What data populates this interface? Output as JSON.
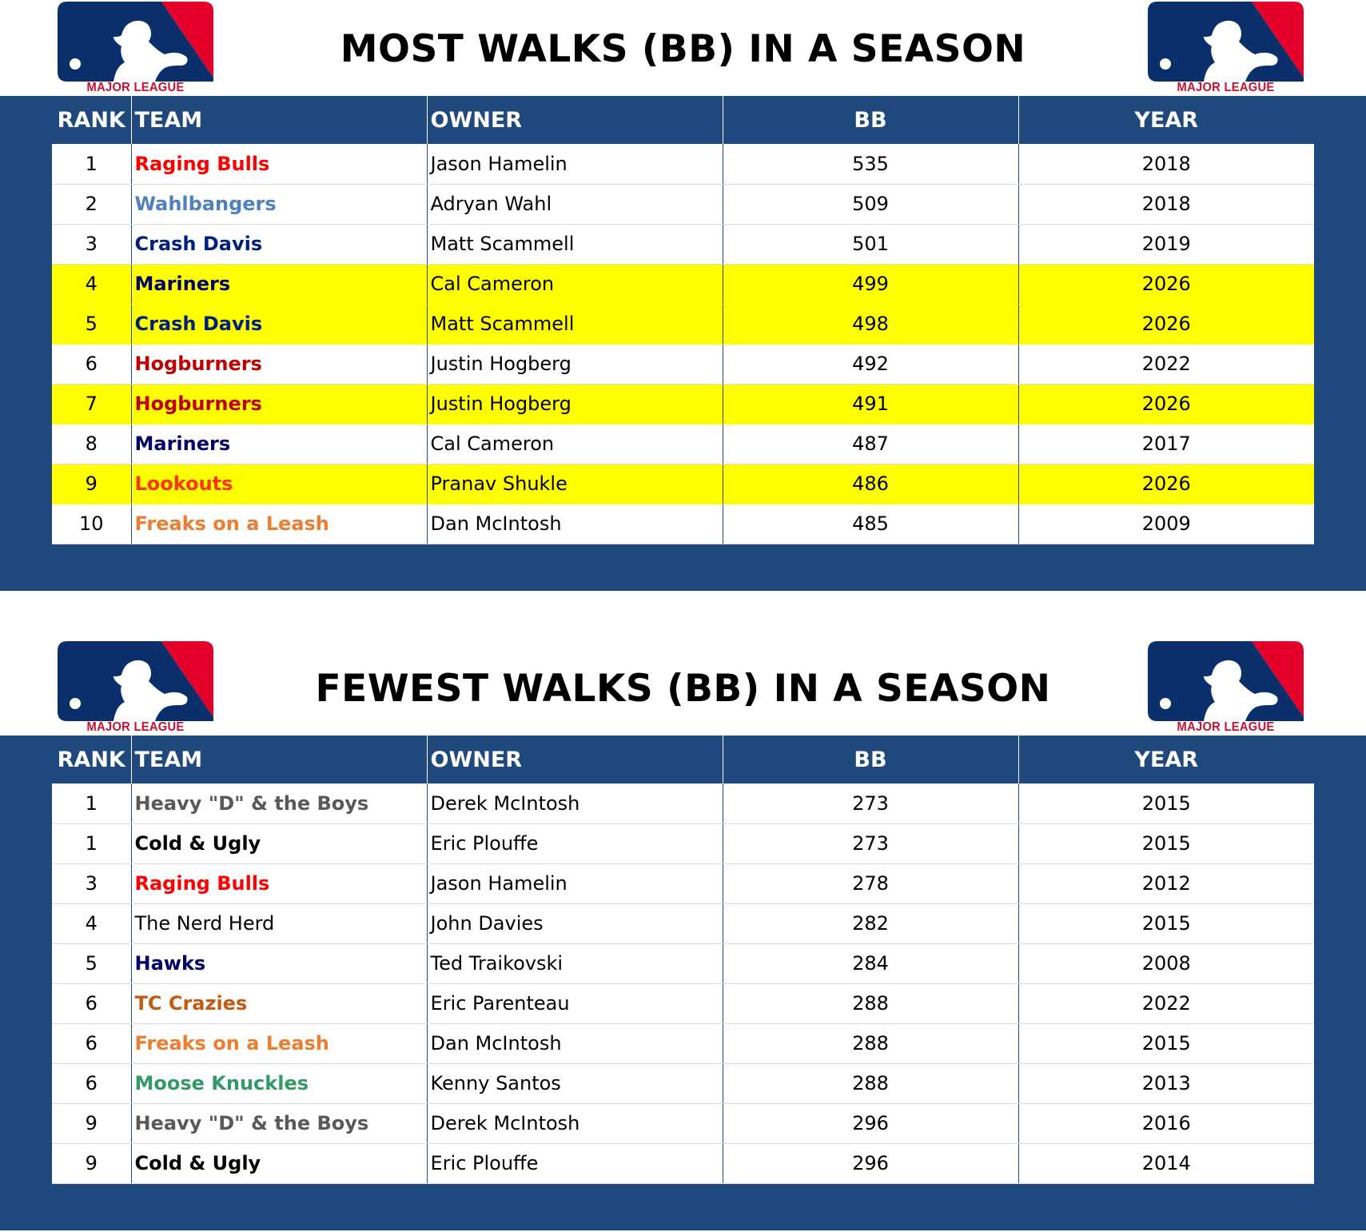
{
  "logo_text": "MAJOR LEAGUE BASEBALL",
  "colors": {
    "panel": "#1f497d",
    "highlight": "#ffff00",
    "logo_blue": "#0b2f6b",
    "logo_red": "#e4002b"
  },
  "tables": [
    {
      "title": "MOST WALKS (BB) IN A SEASON",
      "headers": [
        "RANK",
        "TEAM",
        "OWNER",
        "BB",
        "YEAR"
      ],
      "rows": [
        {
          "rank": "1",
          "team": "Raging Bulls",
          "team_color": "#ff0000",
          "owner": "Jason Hamelin",
          "bb": "535",
          "year": "2018",
          "highlight": false
        },
        {
          "rank": "2",
          "team": "Wahlbangers",
          "team_color": "#4f81bd",
          "owner": "Adryan Wahl",
          "bb": "509",
          "year": "2018",
          "highlight": false
        },
        {
          "rank": "3",
          "team": "Crash Davis",
          "team_color": "#002080",
          "owner": "Matt Scammell",
          "bb": "501",
          "year": "2019",
          "highlight": false
        },
        {
          "rank": "4",
          "team": "Mariners",
          "team_color": "#000066",
          "owner": "Cal Cameron",
          "bb": "499",
          "year": "2026",
          "highlight": true
        },
        {
          "rank": "5",
          "team": "Crash Davis",
          "team_color": "#002080",
          "owner": "Matt Scammell",
          "bb": "498",
          "year": "2026",
          "highlight": true
        },
        {
          "rank": "6",
          "team": "Hogburners",
          "team_color": "#c00000",
          "owner": "Justin Hogberg",
          "bb": "492",
          "year": "2022",
          "highlight": false
        },
        {
          "rank": "7",
          "team": "Hogburners",
          "team_color": "#c00000",
          "owner": "Justin Hogberg",
          "bb": "491",
          "year": "2026",
          "highlight": true
        },
        {
          "rank": "8",
          "team": "Mariners",
          "team_color": "#000066",
          "owner": "Cal Cameron",
          "bb": "487",
          "year": "2017",
          "highlight": false
        },
        {
          "rank": "9",
          "team": "Lookouts",
          "team_color": "#ff3300",
          "owner": "Pranav Shukle",
          "bb": "486",
          "year": "2026",
          "highlight": true
        },
        {
          "rank": "10",
          "team": "Freaks on a Leash",
          "team_color": "#ed7d31",
          "owner": "Dan McIntosh",
          "bb": "485",
          "year": "2009",
          "highlight": false
        }
      ]
    },
    {
      "title": "FEWEST WALKS (BB) IN A SEASON",
      "headers": [
        "RANK",
        "TEAM",
        "OWNER",
        "BB",
        "YEAR"
      ],
      "rows": [
        {
          "rank": "1",
          "team": "Heavy \"D\" & the Boys",
          "team_color": "#595959",
          "owner": "Derek McIntosh",
          "bb": "273",
          "year": "2015",
          "highlight": false
        },
        {
          "rank": "1",
          "team": "Cold & Ugly",
          "team_color": "#000000",
          "owner": "Eric Plouffe",
          "bb": "273",
          "year": "2015",
          "highlight": false
        },
        {
          "rank": "3",
          "team": "Raging Bulls",
          "team_color": "#ff0000",
          "owner": "Jason Hamelin",
          "bb": "278",
          "year": "2012",
          "highlight": false
        },
        {
          "rank": "4",
          "team": "The Nerd Herd",
          "team_color": "#000000",
          "team_weight": "normal",
          "owner": "John Davies",
          "bb": "282",
          "year": "2015",
          "highlight": false
        },
        {
          "rank": "5",
          "team": "Hawks",
          "team_color": "#000066",
          "owner": "Ted Traikovski",
          "bb": "284",
          "year": "2008",
          "highlight": false
        },
        {
          "rank": "6",
          "team": "TC Crazies",
          "team_color": "#c55a11",
          "owner": "Eric Parenteau",
          "bb": "288",
          "year": "2022",
          "highlight": false
        },
        {
          "rank": "6",
          "team": "Freaks on a Leash",
          "team_color": "#ed7d31",
          "owner": "Dan McIntosh",
          "bb": "288",
          "year": "2015",
          "highlight": false
        },
        {
          "rank": "6",
          "team": "Moose Knuckles",
          "team_color": "#339966",
          "owner": "Kenny Santos",
          "bb": "288",
          "year": "2013",
          "highlight": false
        },
        {
          "rank": "9",
          "team": "Heavy \"D\" & the Boys",
          "team_color": "#595959",
          "owner": "Derek McIntosh",
          "bb": "296",
          "year": "2016",
          "highlight": false
        },
        {
          "rank": "9",
          "team": "Cold & Ugly",
          "team_color": "#000000",
          "owner": "Eric Plouffe",
          "bb": "296",
          "year": "2014",
          "highlight": false
        }
      ]
    }
  ]
}
